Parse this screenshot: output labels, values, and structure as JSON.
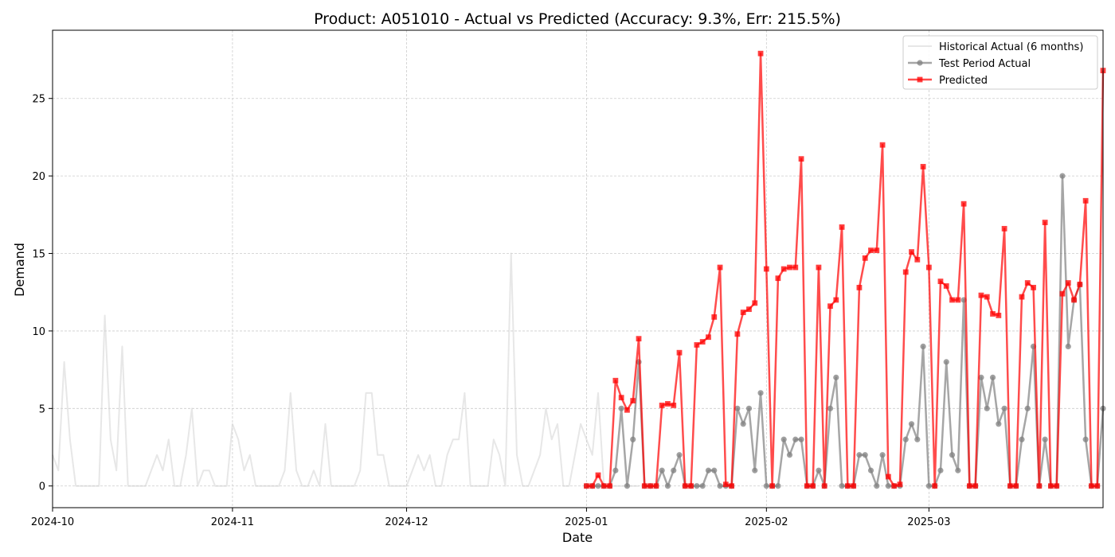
{
  "chart_data": {
    "type": "line",
    "title": "Product: A051010 - Actual vs Predicted (Accuracy: 9.3%, Err: 215.5%)",
    "xlabel": "Date",
    "ylabel": "Demand",
    "x_type": "date",
    "xlim": [
      "2024-10-01",
      "2025-03-31"
    ],
    "ylim": [
      -1.4,
      29.4
    ],
    "xticks": [
      "2024-10",
      "2024-11",
      "2024-12",
      "2025-01",
      "2025-02",
      "2025-03"
    ],
    "yticks": [
      0,
      5,
      10,
      15,
      20,
      25
    ],
    "grid": true,
    "legend_position": "upper right",
    "series": [
      {
        "name": "Historical Actual (6 months)",
        "color": "#d3d3d3",
        "marker": "none",
        "start": "2024-10-01",
        "values": [
          2,
          1,
          8,
          3,
          0,
          0,
          0,
          0,
          0,
          11,
          3,
          1,
          9,
          0,
          0,
          0,
          0,
          1,
          2,
          1,
          3,
          0,
          0,
          2,
          5,
          0,
          1,
          1,
          0,
          0,
          0,
          4,
          3,
          1,
          2,
          0,
          0,
          0,
          0,
          0,
          1,
          6,
          1,
          0,
          0,
          1,
          0,
          4,
          0,
          0,
          0,
          0,
          0,
          1,
          6,
          6,
          2,
          2,
          0,
          0,
          0,
          0,
          1,
          2,
          1,
          2,
          0,
          0,
          2,
          3,
          3,
          6,
          0,
          0,
          0,
          0,
          3,
          2,
          0,
          15,
          2,
          0,
          0,
          1,
          2,
          5,
          3,
          4,
          0,
          0,
          2,
          4,
          3,
          2,
          6,
          0,
          0,
          0,
          0,
          0,
          0,
          0
        ]
      },
      {
        "name": "Test Period Actual",
        "color": "#808080",
        "marker": "circle",
        "start": "2025-01-01",
        "values": [
          0,
          0,
          0,
          0,
          0,
          1,
          5,
          0,
          3,
          8,
          0,
          0,
          0,
          1,
          0,
          1,
          2,
          0,
          0,
          0,
          0,
          1,
          1,
          0,
          0,
          0,
          5,
          4,
          5,
          1,
          6,
          0,
          0,
          0,
          3,
          2,
          3,
          3,
          0,
          0,
          1,
          0,
          5,
          7,
          0,
          0,
          0,
          2,
          2,
          1,
          0,
          2,
          0,
          0,
          0,
          3,
          4,
          3,
          9,
          0,
          0,
          1,
          8,
          2,
          1,
          12,
          0,
          0,
          7,
          5,
          7,
          4,
          5,
          0,
          0,
          3,
          5,
          9,
          0,
          3,
          0,
          0,
          20,
          9,
          12,
          13,
          3,
          0,
          0,
          5
        ]
      },
      {
        "name": "Predicted",
        "color": "#ff0000",
        "marker": "square",
        "start": "2025-01-01",
        "values": [
          0,
          0,
          0.7,
          0,
          0,
          6.8,
          5.7,
          4.9,
          5.5,
          9.5,
          0,
          0,
          0,
          5.2,
          5.3,
          5.2,
          8.6,
          0,
          0,
          9.1,
          9.3,
          9.6,
          10.9,
          14.1,
          0.1,
          0,
          9.8,
          11.2,
          11.4,
          11.8,
          27.9,
          14,
          0,
          13.4,
          14,
          14.1,
          14.1,
          21.1,
          0,
          0,
          14.1,
          0,
          11.6,
          12,
          16.7,
          0,
          0,
          12.8,
          14.7,
          15.2,
          15.2,
          22,
          0.6,
          0,
          0.1,
          13.8,
          15.1,
          14.6,
          20.6,
          14.1,
          0,
          13.2,
          12.9,
          12,
          12,
          18.2,
          0,
          0,
          12.3,
          12.2,
          11.1,
          11,
          16.6,
          0,
          0,
          12.2,
          13.1,
          12.8,
          0,
          17,
          0,
          0,
          12.4,
          13.1,
          12,
          13,
          18.4,
          0,
          0,
          26.8
        ]
      }
    ]
  }
}
